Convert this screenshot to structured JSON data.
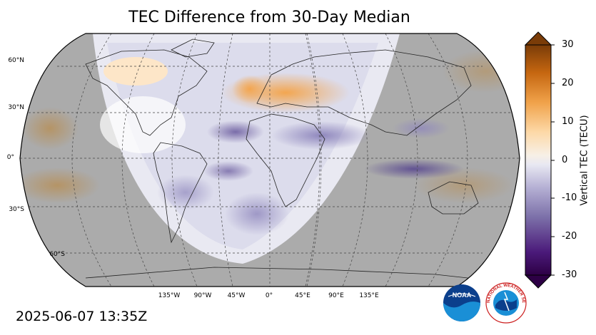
{
  "title": "TEC Difference from 30-Day Median",
  "timestamp": "2025-06-07 13:35Z",
  "latitude_labels": [
    "60°N",
    "30°N",
    "0°",
    "30°S",
    "60°S"
  ],
  "longitude_labels": [
    "135°W",
    "90°W",
    "45°W",
    "0°",
    "45°E",
    "90°E",
    "135°E"
  ],
  "colorbar": {
    "label": "Vertical TEC (TECU)",
    "ticks": [
      "30",
      "20",
      "10",
      "0",
      "-10",
      "-20",
      "-30"
    ],
    "range": [
      -30,
      30
    ],
    "colors": [
      "#3b0a57",
      "#54278f",
      "#8073ac",
      "#b2abd2",
      "#d8daeb",
      "#f7f7f7",
      "#fee0b6",
      "#fdb863",
      "#e08214",
      "#b35806",
      "#7f3b08"
    ]
  },
  "map": {
    "projection": "Robinson",
    "night_shade_color": "#a9a9a9",
    "grid": "dashed"
  },
  "logos": {
    "noaa": "NOAA",
    "nws": "NATIONAL WEATHER SERVICE"
  }
}
